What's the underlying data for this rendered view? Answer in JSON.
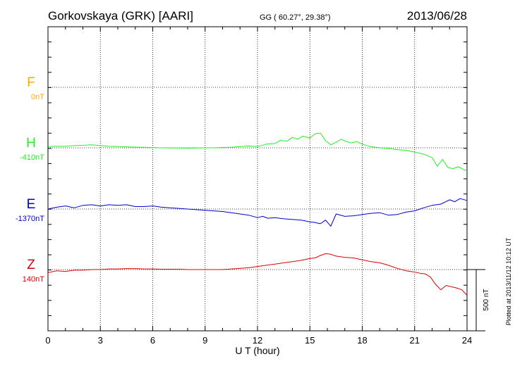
{
  "header": {
    "station": "Gorkovskaya (GRK)  [AARI]",
    "coords": "GG ( 60.27°,  29.38°)",
    "date": "2013/06/28"
  },
  "footer": {
    "plotted": "Plotted at 2013/11/12 10:12 UT"
  },
  "colors": {
    "F": "#ffaa00",
    "H": "#22ee22",
    "E": "#0000cc",
    "Z": "#dd0000"
  },
  "chart_data": {
    "type": "line",
    "xlabel": "U T (hour)",
    "xlim": [
      0,
      24
    ],
    "xticks": [
      0,
      3,
      6,
      9,
      12,
      15,
      18,
      21,
      24
    ],
    "scale_bar": "500 nT",
    "grid": true,
    "series": [
      {
        "name": "F",
        "baseline": "0nT",
        "x": [],
        "values": []
      },
      {
        "name": "H",
        "baseline": "-410nT",
        "x": [
          0,
          0.5,
          1,
          1.5,
          2,
          2.5,
          3,
          3.5,
          4,
          4.5,
          5,
          5.5,
          6,
          6.5,
          7,
          7.5,
          8,
          8.5,
          9,
          9.5,
          10,
          10.5,
          11,
          11.5,
          12,
          12.5,
          13,
          13.3,
          13.7,
          14,
          14.3,
          14.6,
          15,
          15.3,
          15.6,
          15.9,
          16.2,
          16.5,
          16.8,
          17.1,
          17.4,
          17.7,
          18,
          18.5,
          19,
          19.5,
          20,
          20.5,
          21,
          21.5,
          22,
          22.3,
          22.6,
          22.9,
          23.2,
          23.5,
          24
        ],
        "values": [
          10,
          12,
          12,
          18,
          20,
          25,
          18,
          12,
          10,
          8,
          6,
          4,
          2,
          0,
          -2,
          -2,
          -3,
          -2,
          0,
          0,
          3,
          5,
          10,
          15,
          10,
          30,
          35,
          60,
          55,
          85,
          70,
          95,
          80,
          115,
          120,
          60,
          25,
          45,
          70,
          50,
          40,
          50,
          30,
          10,
          0,
          -5,
          -15,
          -20,
          -35,
          -50,
          -80,
          -150,
          -95,
          -160,
          -170,
          -155,
          -190
        ]
      },
      {
        "name": "E",
        "baseline": "-1370nT",
        "x": [
          0,
          0.5,
          1,
          1.5,
          2,
          2.5,
          3,
          3.5,
          4,
          4.5,
          5,
          5.5,
          6,
          6.5,
          7,
          7.5,
          8,
          8.5,
          9,
          9.5,
          10,
          10.5,
          11,
          11.5,
          12,
          12.3,
          12.6,
          13,
          13.5,
          14,
          14.5,
          15,
          15.3,
          15.6,
          15.9,
          16.2,
          16.5,
          17,
          17.5,
          18,
          18.5,
          19,
          19.5,
          20,
          20.5,
          21,
          21.5,
          22,
          22.5,
          23,
          23.3,
          23.6,
          24
        ],
        "values": [
          0,
          15,
          25,
          10,
          30,
          35,
          25,
          35,
          30,
          35,
          20,
          20,
          25,
          15,
          10,
          5,
          0,
          -5,
          -10,
          -15,
          -20,
          -30,
          -40,
          -50,
          -70,
          -60,
          -75,
          -70,
          -80,
          -85,
          -90,
          -105,
          -110,
          -120,
          -90,
          -140,
          -40,
          -60,
          -55,
          -45,
          -35,
          -30,
          -50,
          -45,
          -25,
          -15,
          10,
          30,
          40,
          75,
          60,
          85,
          70
        ]
      },
      {
        "name": "Z",
        "baseline": "140nT",
        "x": [
          0,
          0.5,
          1,
          1.5,
          2,
          2.5,
          3,
          3.5,
          4,
          4.5,
          5,
          5.5,
          6,
          6.5,
          7,
          7.5,
          8,
          8.5,
          9,
          9.5,
          10,
          10.5,
          11,
          11.5,
          12,
          12.5,
          13,
          13.5,
          14,
          14.5,
          15,
          15.3,
          15.6,
          15.9,
          16.2,
          16.5,
          17,
          17.5,
          18,
          18.5,
          19,
          19.5,
          20,
          20.5,
          21,
          21.3,
          21.6,
          21.9,
          22.2,
          22.5,
          22.8,
          23.1,
          23.4,
          23.7,
          24
        ],
        "values": [
          -25,
          -10,
          -15,
          -5,
          -5,
          0,
          0,
          5,
          5,
          8,
          8,
          5,
          5,
          3,
          3,
          3,
          0,
          0,
          0,
          0,
          0,
          5,
          10,
          15,
          25,
          35,
          45,
          55,
          65,
          75,
          90,
          95,
          115,
          130,
          125,
          110,
          100,
          95,
          80,
          65,
          55,
          35,
          10,
          -10,
          -20,
          -30,
          -35,
          -60,
          -120,
          -165,
          -130,
          -140,
          -150,
          -165,
          -210
        ]
      }
    ]
  }
}
